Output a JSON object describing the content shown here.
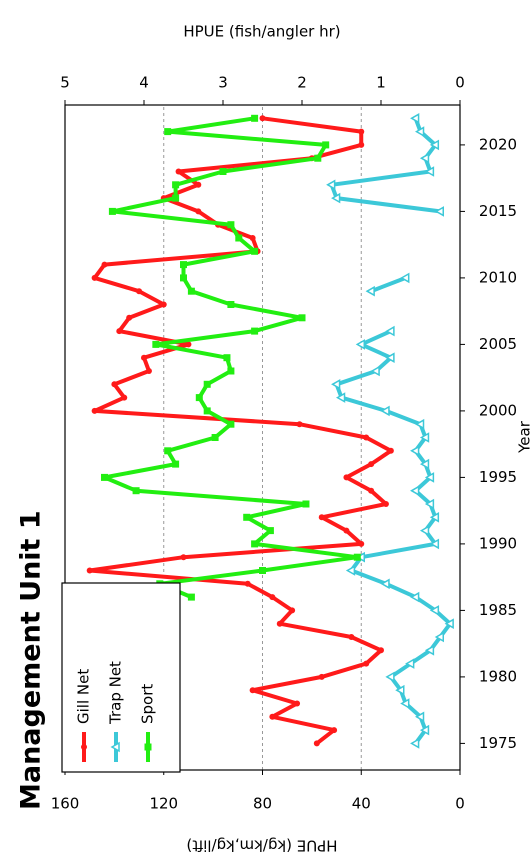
{
  "chart_data": {
    "type": "line",
    "title": "Management Unit 1",
    "xlabel": "Year",
    "ylabel": "HPUE (kg/km,kg/lift)",
    "y2label": "HPUE (fish/angler hr)",
    "x": [
      1975,
      1976,
      1977,
      1978,
      1979,
      1980,
      1981,
      1982,
      1983,
      1984,
      1985,
      1986,
      1987,
      1988,
      1989,
      1990,
      1991,
      1992,
      1993,
      1994,
      1995,
      1996,
      1997,
      1998,
      1999,
      2000,
      2001,
      2002,
      2003,
      2004,
      2005,
      2006,
      2007,
      2008,
      2009,
      2010,
      2011,
      2012,
      2013,
      2014,
      2015,
      2016,
      2017,
      2018,
      2019,
      2020,
      2021,
      2022
    ],
    "xlim": [
      1973,
      2023
    ],
    "xticks": [
      1975,
      1980,
      1985,
      1990,
      1995,
      2000,
      2005,
      2010,
      2015,
      2020
    ],
    "ylim": [
      0,
      160
    ],
    "yticks": [
      0,
      40,
      80,
      120,
      160
    ],
    "y2lim": [
      0,
      5
    ],
    "y2ticks": [
      0,
      1,
      2,
      3,
      4,
      5
    ],
    "grid": true,
    "legend": "upper left",
    "series": [
      {
        "name": "Gill Net",
        "color": "#ff1a1a",
        "marker": "circle",
        "values": [
          58,
          51,
          76,
          66,
          84,
          56,
          38,
          32,
          44,
          73,
          68,
          76,
          86,
          150,
          112,
          40,
          46,
          56,
          30,
          36,
          46,
          36,
          28,
          38,
          65,
          148,
          136,
          140,
          126,
          128,
          110,
          138,
          134,
          120,
          130,
          148,
          144,
          82,
          84,
          98,
          106,
          120,
          106,
          114,
          60,
          40,
          40,
          80
        ]
      },
      {
        "name": "Trap Net",
        "color": "#3cc8d8",
        "marker": "triangle",
        "values": [
          18,
          14,
          16,
          22,
          24,
          28,
          20,
          12,
          8,
          4,
          10,
          18,
          30,
          44,
          40,
          10,
          14,
          10,
          12,
          18,
          12,
          14,
          18,
          14,
          16,
          30,
          48,
          50,
          34,
          28,
          40,
          28,
          null,
          null,
          36,
          22,
          null,
          null,
          null,
          null,
          8,
          50,
          52,
          12,
          14,
          10,
          16,
          18
        ]
      },
      {
        "name": "Sport",
        "color": "#22ee11",
        "marker": "square",
        "axis": "y2",
        "values": [
          null,
          null,
          null,
          null,
          null,
          null,
          null,
          null,
          null,
          null,
          null,
          3.4,
          3.8,
          2.5,
          1.3,
          2.6,
          2.4,
          2.7,
          1.95,
          4.1,
          4.5,
          3.6,
          3.7,
          3.1,
          2.9,
          3.2,
          3.3,
          3.2,
          2.9,
          2.95,
          3.85,
          2.6,
          2.0,
          2.9,
          3.4,
          3.5,
          3.5,
          2.6,
          2.8,
          2.9,
          4.4,
          3.6,
          3.6,
          3.0,
          1.8,
          1.7,
          3.7,
          2.6
        ]
      }
    ]
  }
}
